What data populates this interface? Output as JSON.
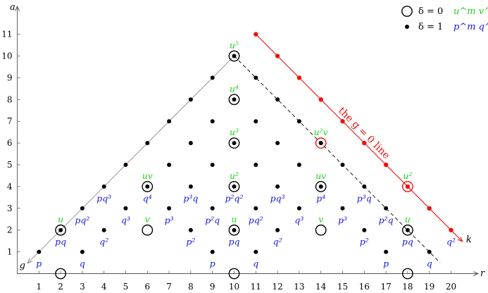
{
  "chart_data": {
    "type": "scatter",
    "axes": {
      "x_label": "r",
      "y_label": "a",
      "x_ticks": [
        1,
        2,
        3,
        4,
        5,
        6,
        7,
        8,
        9,
        10,
        11,
        12,
        13,
        14,
        15,
        16,
        17,
        18,
        19,
        20
      ],
      "y_ticks": [
        1,
        2,
        3,
        4,
        5,
        6,
        7,
        8,
        9,
        10,
        11
      ],
      "xlim": [
        0,
        21
      ],
      "ylim": [
        0,
        11.8
      ],
      "diag_labels": {
        "left": "g",
        "right": "k"
      },
      "line_label": "the g = 0 line"
    },
    "legend": {
      "position": "top-right",
      "entries": [
        {
          "marker": "ring",
          "delta": "δ = 0",
          "expr": "u^m v^n",
          "expr_color": "#1dd31d"
        },
        {
          "marker": "dot",
          "delta": "δ = 1",
          "expr": "p^m q^n",
          "expr_color": "#1a1ae0"
        }
      ]
    },
    "colors": {
      "green": "#1dd31d",
      "blue": "#1a1ae0",
      "red": "#ee1111",
      "gray": "#999999"
    },
    "lines": {
      "left_edge": [
        [
          0.5,
          0.5
        ],
        [
          10,
          10
        ]
      ],
      "red_line": [
        [
          11,
          11
        ],
        [
          20.5,
          1.5
        ]
      ],
      "dashed": [
        [
          10,
          10
        ],
        [
          19.5,
          0.5
        ]
      ]
    },
    "black_dots": [
      [
        1,
        1
      ],
      [
        2,
        2
      ],
      [
        3,
        1
      ],
      [
        3,
        3
      ],
      [
        4,
        2
      ],
      [
        4,
        4
      ],
      [
        5,
        3
      ],
      [
        5,
        5
      ],
      [
        6,
        4
      ],
      [
        6,
        6
      ],
      [
        7,
        3
      ],
      [
        7,
        5
      ],
      [
        7,
        7
      ],
      [
        8,
        2
      ],
      [
        8,
        4
      ],
      [
        8,
        6
      ],
      [
        8,
        8
      ],
      [
        9,
        1
      ],
      [
        9,
        3
      ],
      [
        9,
        5
      ],
      [
        9,
        7
      ],
      [
        9,
        9
      ],
      [
        10,
        2
      ],
      [
        10,
        4
      ],
      [
        10,
        6
      ],
      [
        10,
        8
      ],
      [
        10,
        10
      ],
      [
        11,
        1
      ],
      [
        11,
        3
      ],
      [
        11,
        5
      ],
      [
        11,
        7
      ],
      [
        11,
        9
      ],
      [
        12,
        2
      ],
      [
        12,
        4
      ],
      [
        12,
        6
      ],
      [
        12,
        8
      ],
      [
        13,
        3
      ],
      [
        13,
        5
      ],
      [
        13,
        7
      ],
      [
        14,
        4
      ],
      [
        14,
        6
      ],
      [
        15,
        3
      ],
      [
        15,
        5
      ],
      [
        16,
        2
      ],
      [
        16,
        4
      ],
      [
        17,
        1
      ],
      [
        17,
        3
      ],
      [
        18,
        2
      ],
      [
        19,
        1
      ]
    ],
    "red_dots": [
      [
        11,
        11
      ],
      [
        12,
        10
      ],
      [
        13,
        9
      ],
      [
        14,
        8
      ],
      [
        15,
        7
      ],
      [
        16,
        6
      ],
      [
        17,
        5
      ],
      [
        18,
        4
      ],
      [
        19,
        3
      ],
      [
        20,
        2
      ]
    ],
    "black_rings": [
      [
        2,
        2
      ],
      [
        2,
        0
      ],
      [
        6,
        2
      ],
      [
        6,
        4
      ],
      [
        10,
        0
      ],
      [
        10,
        2
      ],
      [
        10,
        4
      ],
      [
        10,
        6
      ],
      [
        10,
        8
      ],
      [
        10,
        10
      ],
      [
        14,
        2
      ],
      [
        14,
        4
      ],
      [
        18,
        0
      ],
      [
        18,
        2
      ]
    ],
    "red_rings": [
      [
        14,
        6
      ],
      [
        18,
        4
      ]
    ],
    "green_labels": [
      {
        "x": 2,
        "y": 2,
        "text": "u"
      },
      {
        "x": 6,
        "y": 4,
        "text": "uv"
      },
      {
        "x": 6,
        "y": 2,
        "text": "v"
      },
      {
        "x": 10,
        "y": 10,
        "text": "u⁵"
      },
      {
        "x": 10,
        "y": 8,
        "text": "u⁴"
      },
      {
        "x": 10,
        "y": 6,
        "text": "u³"
      },
      {
        "x": 10,
        "y": 4,
        "text": "u²"
      },
      {
        "x": 10,
        "y": 2,
        "text": "u"
      },
      {
        "x": 14,
        "y": 6,
        "text": "u²v"
      },
      {
        "x": 14,
        "y": 4,
        "text": "uv"
      },
      {
        "x": 14,
        "y": 2,
        "text": "v"
      },
      {
        "x": 18,
        "y": 4,
        "text": "u²"
      },
      {
        "x": 18,
        "y": 2,
        "text": "u"
      }
    ],
    "blue_labels": [
      {
        "x": 1,
        "y": 1,
        "text": "p"
      },
      {
        "x": 2,
        "y": 2,
        "text": "pq"
      },
      {
        "x": 3,
        "y": 1,
        "text": "q"
      },
      {
        "x": 3,
        "y": 3,
        "text": "pq²"
      },
      {
        "x": 4,
        "y": 2,
        "text": "q²"
      },
      {
        "x": 4,
        "y": 4,
        "text": "pq³"
      },
      {
        "x": 5,
        "y": 3,
        "text": "q³"
      },
      {
        "x": 6,
        "y": 4,
        "text": "q⁴"
      },
      {
        "x": 7,
        "y": 3,
        "text": "p³"
      },
      {
        "x": 8,
        "y": 2,
        "text": "p²"
      },
      {
        "x": 8,
        "y": 4,
        "text": "p³q"
      },
      {
        "x": 9,
        "y": 1,
        "text": "p"
      },
      {
        "x": 9,
        "y": 3,
        "text": "p²q"
      },
      {
        "x": 10,
        "y": 2,
        "text": "pq"
      },
      {
        "x": 10,
        "y": 4,
        "text": "p²q²"
      },
      {
        "x": 11,
        "y": 1,
        "text": "q"
      },
      {
        "x": 11,
        "y": 3,
        "text": "pq²"
      },
      {
        "x": 12,
        "y": 2,
        "text": "q²"
      },
      {
        "x": 12,
        "y": 4,
        "text": "pq³"
      },
      {
        "x": 13,
        "y": 3,
        "text": "q³"
      },
      {
        "x": 14,
        "y": 4,
        "text": "p⁴"
      },
      {
        "x": 15,
        "y": 3,
        "text": "p³"
      },
      {
        "x": 16,
        "y": 2,
        "text": "p²"
      },
      {
        "x": 16,
        "y": 4,
        "text": "p³q"
      },
      {
        "x": 17,
        "y": 1,
        "text": "p"
      },
      {
        "x": 17,
        "y": 3,
        "text": "p²q"
      },
      {
        "x": 18,
        "y": 2,
        "text": "pq"
      },
      {
        "x": 19,
        "y": 1,
        "text": "q"
      },
      {
        "x": 20,
        "y": 2,
        "text": "q²"
      }
    ]
  }
}
